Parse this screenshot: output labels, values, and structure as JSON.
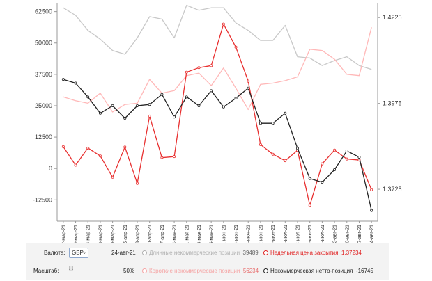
{
  "chart_data": {
    "type": "line",
    "categories": [
      "02-мар-21",
      "09-мар-21",
      "16-мар-21",
      "23-мар-21",
      "30-мар-21",
      "06-апр-21",
      "13-апр-21",
      "20-апр-21",
      "27-апр-21",
      "04-мая-21",
      "11-мая-21",
      "18-мая-21",
      "25-мая-21",
      "01-июн-21",
      "08-июн-21",
      "15-июн-21",
      "22-июн-21",
      "29-июн-21",
      "06-июл-21",
      "13-июл-21",
      "20-июл-21",
      "27-июл-21",
      "03-авг-21",
      "10-авг-21",
      "17-авг-21",
      "24-авг-21"
    ],
    "x_tick_labels": [
      "02-мар-21",
      "09-мар-21",
      "16-мар-21",
      "23-мар-21",
      "30-мар-21",
      "06-апр-21",
      "13-апр-21",
      "20-апр-21",
      "27-апр-21",
      "04-мая-21",
      "11-мая-21",
      "18-мая-21",
      "25-мая-21",
      "01-июн-21",
      "08-июн-21",
      "15-июн-21",
      "22-июн-21",
      "29-июн-21",
      "06-июл-21",
      "13-июл-21",
      "20-июл-21",
      "27-июл-21",
      "03-авг-21",
      "10-авг-21",
      "17-авг-21",
      "24-авг-21"
    ],
    "y_left_ticks": [
      "62500",
      "50000",
      "37500",
      "25000",
      "12500",
      "0",
      "-12500"
    ],
    "y_right_ticks": [
      "1.4225",
      "1.3975",
      "1.3725"
    ],
    "ylim_left": [
      -21000,
      66000
    ],
    "ylim_right": [
      1.3632,
      1.4268
    ],
    "grid": false,
    "series": [
      {
        "name": "Длинные некоммерческие позиции",
        "axis": "left",
        "color": "#c8c8c8",
        "marker": false,
        "values": [
          64000,
          61000,
          55000,
          51500,
          47000,
          45500,
          52000,
          60500,
          59500,
          52000,
          65000,
          63000,
          64000,
          64000,
          58000,
          55000,
          51000,
          51000,
          57000,
          44500,
          44000,
          41000,
          43000,
          44500,
          41000,
          39489
        ]
      },
      {
        "name": "Короткие некоммерческие позиции",
        "axis": "left",
        "color": "#ffb8b8",
        "marker": false,
        "values": [
          28500,
          27000,
          26000,
          30000,
          22500,
          25500,
          26000,
          35500,
          30000,
          31000,
          37000,
          38000,
          33000,
          40000,
          32000,
          23500,
          33500,
          34000,
          35000,
          36500,
          47500,
          47000,
          43500,
          37500,
          37000,
          56234
        ]
      },
      {
        "name": "Недельная цена закрытия",
        "axis": "right",
        "color": "#e83030",
        "marker": true,
        "values": [
          1.3849,
          1.3795,
          1.3845,
          1.3822,
          1.376,
          1.3848,
          1.3742,
          1.3938,
          1.3817,
          1.382,
          1.4066,
          1.4079,
          1.4085,
          1.4206,
          1.4139,
          1.404,
          1.3855,
          1.3827,
          1.3808,
          1.3838,
          1.3678,
          1.3799,
          1.3839,
          1.3813,
          1.381,
          1.37234
        ]
      },
      {
        "name": "Некоммерческая нетто-позиция",
        "axis": "left",
        "color": "#222222",
        "marker": true,
        "values": [
          35500,
          34000,
          28500,
          22000,
          25000,
          20000,
          25000,
          25500,
          29500,
          20500,
          28500,
          25000,
          31000,
          24500,
          28000,
          32000,
          18000,
          18000,
          22000,
          8000,
          -4000,
          -5500,
          -500,
          7000,
          4500,
          -16745
        ]
      }
    ]
  },
  "panel": {
    "currency_label": "Валюта:",
    "currency_value": "GBP",
    "date": "24-авг-21",
    "scale_label": "Масштаб:",
    "scale_value": "50%",
    "legend": [
      {
        "label": "Длинные некоммерческие позиции",
        "value": "39489",
        "color": "#b0b0b0",
        "value_color": "#666666"
      },
      {
        "label": "Короткие некоммерческие позиции",
        "value": "56234",
        "color": "#f5a3a3",
        "value_color": "#e87070"
      },
      {
        "label": "Недельная цена закрытия",
        "value": "1.37234",
        "color": "#e02020",
        "value_color": "#e02020"
      },
      {
        "label": "Некоммерческая нетто-позиция",
        "value": "-16745",
        "color": "#222222",
        "value_color": "#222222"
      }
    ]
  }
}
